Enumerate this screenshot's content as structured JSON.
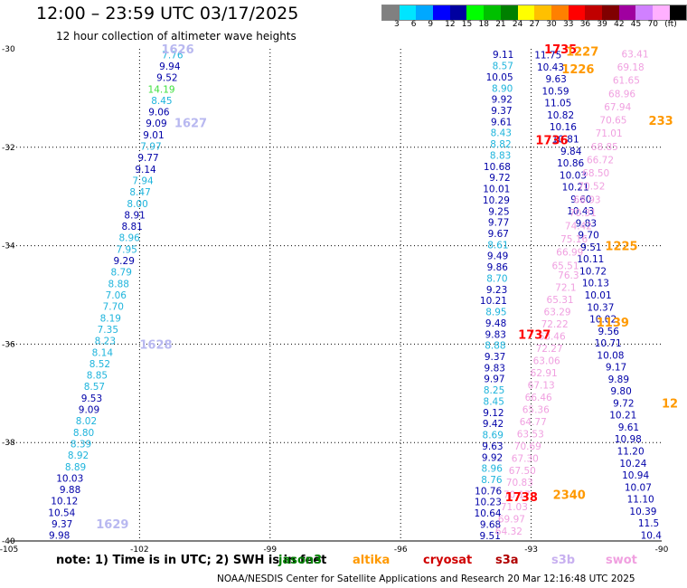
{
  "title": "12:00 – 23:59 UTC 03/17/2025",
  "subtitle": "12 hour collection of altimeter wave heights",
  "colorbar": {
    "unit": "(ft)",
    "colors": [
      "#808080",
      "#00e5ff",
      "#00a8ff",
      "#0000ff",
      "#0000a0",
      "#00ff00",
      "#00c000",
      "#008000",
      "#ffff00",
      "#ffc000",
      "#ff8000",
      "#ff0000",
      "#c00000",
      "#800000",
      "#a000a0",
      "#d080ff",
      "#ffb0ff",
      "#000000"
    ],
    "labels": [
      "3",
      "6",
      "9",
      "12",
      "15",
      "18",
      "21",
      "24",
      "27",
      "30",
      "33",
      "36",
      "39",
      "42",
      "45",
      "70"
    ]
  },
  "axes": {
    "lon_ticks": [
      "-105",
      "-102",
      "-99",
      "-96",
      "-93",
      "-90"
    ],
    "lat_ticks": [
      "-30",
      "-32",
      "-34",
      "-36",
      "-38",
      "-40"
    ]
  },
  "colors": {
    "cyan": "#1eb4dc",
    "navy": "#0000a8",
    "blue": "#2020e0",
    "green": "#40e040",
    "pink": "#f0a0e0",
    "lav": "#b8b8f0",
    "red": "#ff0000",
    "orange": "#ff9900",
    "darkred": "#d00000"
  },
  "chart_data": {
    "type": "scatter",
    "x_range": [
      -105,
      -90
    ],
    "y_range": [
      -40,
      -30
    ],
    "passes": [
      {
        "label": "1626",
        "lon": -101.5,
        "lat": -30.0,
        "color": "lav"
      },
      {
        "label": "1627",
        "lon": -101.2,
        "lat": -31.5,
        "color": "lav"
      },
      {
        "label": "1628",
        "lon": -102.0,
        "lat": -36.0,
        "color": "lav"
      },
      {
        "label": "1629",
        "lon": -103.0,
        "lat": -39.65,
        "color": "lav"
      },
      {
        "label": "1735",
        "lon": -92.7,
        "lat": -30.0,
        "color": "red"
      },
      {
        "label": "1736",
        "lon": -92.9,
        "lat": -31.85,
        "color": "red"
      },
      {
        "label": "1737",
        "lon": -93.3,
        "lat": -35.8,
        "color": "red"
      },
      {
        "label": "1738",
        "lon": -93.6,
        "lat": -39.1,
        "color": "red"
      },
      {
        "label": "1227",
        "lon": -92.2,
        "lat": -30.05,
        "color": "orange"
      },
      {
        "label": "1226",
        "lon": -92.3,
        "lat": -30.4,
        "color": "orange"
      },
      {
        "label": "233",
        "lon": -90.3,
        "lat": -31.45,
        "color": "orange"
      },
      {
        "label": "1225",
        "lon": -91.3,
        "lat": -34.0,
        "color": "orange"
      },
      {
        "label": "1139",
        "lon": -91.5,
        "lat": -35.55,
        "color": "orange"
      },
      {
        "label": "2340",
        "lon": -92.5,
        "lat": -39.05,
        "color": "orange"
      },
      {
        "label": "12",
        "lon": -90.0,
        "lat": -37.2,
        "color": "orange"
      }
    ],
    "track_a": [
      [
        "7.76",
        "cyan"
      ],
      [
        "9.94",
        "navy"
      ],
      [
        "9.52",
        "navy"
      ],
      [
        "14.19",
        "green"
      ],
      [
        "8.45",
        "cyan"
      ],
      [
        "9.06",
        "navy"
      ],
      [
        "9.09",
        "navy"
      ],
      [
        "9.01",
        "navy"
      ],
      [
        "7.97",
        "cyan"
      ],
      [
        "9.77",
        "navy"
      ],
      [
        "9.14",
        "navy"
      ],
      [
        "7.94",
        "cyan"
      ],
      [
        "8.47",
        "cyan"
      ],
      [
        "8.00",
        "cyan"
      ],
      [
        "8.91",
        "navy"
      ],
      [
        "8.81",
        "navy"
      ],
      [
        "8.96",
        "cyan"
      ],
      [
        "7.95",
        "cyan"
      ],
      [
        "9.29",
        "navy"
      ],
      [
        "8.79",
        "cyan"
      ],
      [
        "8.88",
        "cyan"
      ],
      [
        "7.06",
        "cyan"
      ],
      [
        "7.70",
        "cyan"
      ],
      [
        "8.19",
        "cyan"
      ],
      [
        "7.35",
        "cyan"
      ],
      [
        "8.23",
        "cyan"
      ],
      [
        "8.14",
        "cyan"
      ],
      [
        "8.52",
        "cyan"
      ],
      [
        "8.85",
        "cyan"
      ],
      [
        "8.57",
        "cyan"
      ],
      [
        "9.53",
        "navy"
      ],
      [
        "9.09",
        "navy"
      ],
      [
        "8.02",
        "cyan"
      ],
      [
        "8.80",
        "cyan"
      ],
      [
        "8.39",
        "cyan"
      ],
      [
        "8.92",
        "cyan"
      ],
      [
        "8.89",
        "cyan"
      ],
      [
        "10.03",
        "navy"
      ],
      [
        "9.88",
        "navy"
      ],
      [
        "10.12",
        "navy"
      ],
      [
        "10.54",
        "navy"
      ],
      [
        "9.37",
        "navy"
      ],
      [
        "9.98",
        "navy"
      ]
    ],
    "track_b": [
      [
        "9.11",
        "navy"
      ],
      [
        "8.57",
        "cyan"
      ],
      [
        "10.05",
        "navy"
      ],
      [
        "8.90",
        "cyan"
      ],
      [
        "9.92",
        "navy"
      ],
      [
        "9.37",
        "navy"
      ],
      [
        "9.61",
        "navy"
      ],
      [
        "8.43",
        "cyan"
      ],
      [
        "8.82",
        "cyan"
      ],
      [
        "8.83",
        "cyan"
      ],
      [
        "10.68",
        "navy"
      ],
      [
        "9.72",
        "navy"
      ],
      [
        "10.01",
        "navy"
      ],
      [
        "10.29",
        "navy"
      ],
      [
        "9.25",
        "navy"
      ],
      [
        "9.77",
        "navy"
      ],
      [
        "9.67",
        "navy"
      ],
      [
        "8.61",
        "cyan"
      ],
      [
        "9.49",
        "navy"
      ],
      [
        "9.86",
        "navy"
      ],
      [
        "8.70",
        "cyan"
      ],
      [
        "9.23",
        "navy"
      ],
      [
        "10.21",
        "navy"
      ],
      [
        "8.95",
        "cyan"
      ],
      [
        "9.48",
        "navy"
      ],
      [
        "9.83",
        "navy"
      ],
      [
        "8.88",
        "cyan"
      ],
      [
        "9.37",
        "navy"
      ],
      [
        "9.83",
        "navy"
      ],
      [
        "9.97",
        "navy"
      ],
      [
        "8.25",
        "cyan"
      ],
      [
        "8.45",
        "cyan"
      ],
      [
        "9.12",
        "navy"
      ],
      [
        "9.42",
        "navy"
      ],
      [
        "8.69",
        "cyan"
      ],
      [
        "9.63",
        "navy"
      ],
      [
        "9.92",
        "navy"
      ],
      [
        "8.96",
        "cyan"
      ],
      [
        "8.76",
        "cyan"
      ],
      [
        "10.76",
        "navy"
      ],
      [
        "10.23",
        "navy"
      ],
      [
        "10.64",
        "navy"
      ],
      [
        "9.68",
        "navy"
      ],
      [
        "9.51",
        "navy"
      ]
    ],
    "track_c": [
      [
        "11.75",
        "navy"
      ],
      [
        "10.43",
        "navy"
      ],
      [
        "9.63",
        "navy"
      ],
      [
        "10.59",
        "navy"
      ],
      [
        "11.05",
        "navy"
      ],
      [
        "10.82",
        "navy"
      ],
      [
        "10.16",
        "navy"
      ],
      [
        "10.81",
        "navy"
      ],
      [
        "9.84",
        "navy"
      ],
      [
        "10.86",
        "navy"
      ],
      [
        "10.03",
        "navy"
      ],
      [
        "10.21",
        "navy"
      ],
      [
        "9.60",
        "navy"
      ],
      [
        "10.43",
        "navy"
      ],
      [
        "9.83",
        "navy"
      ],
      [
        "9.70",
        "navy"
      ],
      [
        "9.51",
        "navy"
      ],
      [
        "10.11",
        "navy"
      ],
      [
        "10.72",
        "navy"
      ],
      [
        "10.13",
        "navy"
      ],
      [
        "10.01",
        "navy"
      ],
      [
        "10.37",
        "navy"
      ],
      [
        "10.02",
        "navy"
      ],
      [
        "9.56",
        "navy"
      ],
      [
        "10.71",
        "navy"
      ],
      [
        "10.08",
        "navy"
      ],
      [
        "9.17",
        "navy"
      ],
      [
        "9.89",
        "navy"
      ],
      [
        "9.80",
        "navy"
      ],
      [
        "9.72",
        "navy"
      ],
      [
        "10.21",
        "navy"
      ],
      [
        "9.61",
        "navy"
      ],
      [
        "10.98",
        "navy"
      ],
      [
        "11.20",
        "navy"
      ],
      [
        "10.24",
        "navy"
      ],
      [
        "10.94",
        "navy"
      ],
      [
        "10.07",
        "navy"
      ],
      [
        "11.10",
        "navy"
      ],
      [
        "10.39",
        "navy"
      ],
      [
        "11.5",
        "navy"
      ],
      [
        "10.4",
        "navy"
      ]
    ],
    "track_d": [
      [
        "63.41",
        "pink"
      ],
      [
        "69.18",
        "pink"
      ],
      [
        "61.65",
        "pink"
      ],
      [
        "68.96",
        "pink"
      ],
      [
        "67.94",
        "pink"
      ],
      [
        "70.65",
        "pink"
      ],
      [
        "71.01",
        "pink"
      ],
      [
        "68.85",
        "pink"
      ],
      [
        "66.72",
        "pink"
      ],
      [
        "68.50",
        "pink"
      ],
      [
        "70.52",
        "pink"
      ],
      [
        "68.93",
        "pink"
      ],
      [
        "70.31",
        "pink"
      ],
      [
        "74.42",
        "pink"
      ],
      [
        "75.16",
        "pink"
      ],
      [
        "66.99",
        "pink"
      ],
      [
        "65.51",
        "pink"
      ]
    ],
    "track_e": [
      [
        "76.3",
        "pink"
      ],
      [
        "72.1",
        "pink"
      ],
      [
        "65.31",
        "pink"
      ],
      [
        "63.29",
        "pink"
      ],
      [
        "72.22",
        "pink"
      ],
      [
        "63.46",
        "pink"
      ],
      [
        "72.27",
        "pink"
      ],
      [
        "63.06",
        "pink"
      ],
      [
        "62.91",
        "pink"
      ],
      [
        "67.13",
        "pink"
      ],
      [
        "66.46",
        "pink"
      ],
      [
        "65.36",
        "pink"
      ],
      [
        "64.77",
        "pink"
      ],
      [
        "63.53",
        "pink"
      ],
      [
        "70.69",
        "pink"
      ],
      [
        "67.30",
        "pink"
      ],
      [
        "67.50",
        "pink"
      ],
      [
        "70.83",
        "pink"
      ],
      [
        "70.17",
        "pink"
      ],
      [
        "71.03",
        "pink"
      ],
      [
        "69.97",
        "pink"
      ],
      [
        "64.32",
        "pink"
      ]
    ]
  },
  "footer": {
    "note": "note:  1) Time is in UTC;  2) SWH is in feet",
    "satellites": [
      {
        "name": "jason3",
        "color": "#008000"
      },
      {
        "name": "altika",
        "color": "#ff9900"
      },
      {
        "name": "cryosat",
        "color": "#d00000"
      },
      {
        "name": "s3a",
        "color": "#b00000"
      },
      {
        "name": "s3b",
        "color": "#c8b0f0"
      },
      {
        "name": "swot",
        "color": "#f0a0e0"
      }
    ],
    "credit": "NOAA/NESDIS Center for Satellite Applications and Research     20 Mar 12:16:48 UTC 2025"
  }
}
